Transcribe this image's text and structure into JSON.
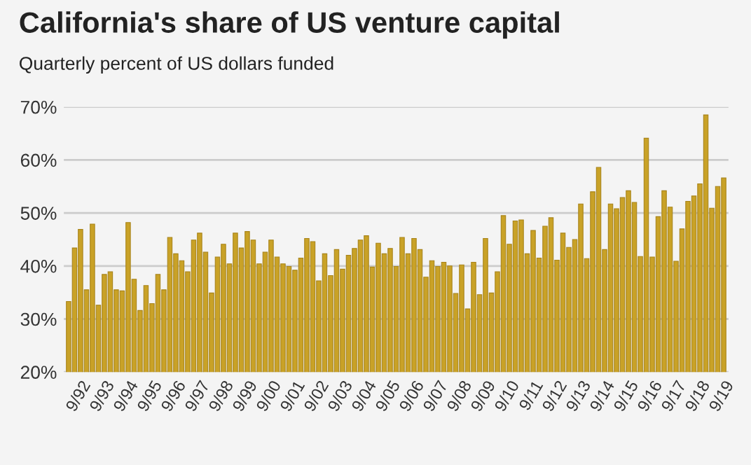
{
  "chart_data": {
    "type": "bar",
    "title": "California's share of US venture capital",
    "subtitle": "Quarterly percent of US dollars funded",
    "categories": [
      null,
      null,
      "9/92",
      null,
      null,
      null,
      "9/93",
      null,
      null,
      null,
      "9/94",
      null,
      null,
      null,
      "9/95",
      null,
      null,
      null,
      "9/96",
      null,
      null,
      null,
      "9/97",
      null,
      null,
      null,
      "9/98",
      null,
      null,
      null,
      "9/99",
      null,
      null,
      null,
      "9/00",
      null,
      null,
      null,
      "9/01",
      null,
      null,
      null,
      "9/02",
      null,
      null,
      null,
      "9/03",
      null,
      null,
      null,
      "9/04",
      null,
      null,
      null,
      "9/05",
      null,
      null,
      null,
      "9/06",
      null,
      null,
      null,
      "9/07",
      null,
      null,
      null,
      "9/08",
      null,
      null,
      null,
      "9/09",
      null,
      null,
      null,
      "9/10",
      null,
      null,
      null,
      "9/11",
      null,
      null,
      null,
      "9/12",
      null,
      null,
      null,
      "9/13",
      null,
      null,
      null,
      "9/14",
      null,
      null,
      null,
      "9/15",
      null,
      null,
      null,
      "9/16",
      null,
      null,
      null,
      "9/17",
      null,
      null,
      null,
      "9/18",
      null,
      null,
      null,
      "9/19"
    ],
    "values": [
      33.3,
      43.4,
      46.9,
      35.5,
      47.9,
      32.6,
      38.4,
      38.9,
      35.5,
      35.3,
      48.2,
      37.5,
      31.6,
      36.3,
      32.9,
      38.4,
      35.5,
      45.4,
      42.3,
      41,
      38.9,
      44.9,
      46.2,
      42.6,
      34.9,
      41.7,
      44.1,
      40.4,
      46.2,
      43.4,
      46.5,
      44.9,
      40.4,
      42.6,
      44.9,
      41.7,
      40.4,
      39.9,
      39.2,
      41.5,
      45.2,
      44.6,
      37.2,
      42.3,
      38.2,
      43.1,
      39.4,
      42,
      43.3,
      44.9,
      45.7,
      39.8,
      44.3,
      42.3,
      43.3,
      39.9,
      45.4,
      42.3,
      45.2,
      43.1,
      37.9,
      41,
      39.9,
      40.7,
      40,
      34.8,
      40.2,
      31.9,
      40.7,
      34.6,
      45.2,
      34.9,
      38.9,
      49.5,
      44.1,
      48.5,
      48.7,
      42.3,
      46.7,
      41.5,
      47.5,
      49.1,
      41.1,
      46.2,
      43.5,
      45,
      51.7,
      41.4,
      54,
      58.6,
      43.1,
      51.7,
      50.8,
      52.9,
      54.2,
      52,
      41.8,
      64.1,
      41.7,
      49.3,
      54.2,
      51.1,
      40.9,
      47,
      52.2,
      53.2,
      55.5,
      68.5,
      50.9,
      55,
      56.6
    ],
    "color": "#c9a227",
    "ylim": [
      20,
      70
    ],
    "yticks": [
      {
        "value": 20,
        "label": "20%"
      },
      {
        "value": 30,
        "label": "30%"
      },
      {
        "value": 40,
        "label": "40%"
      },
      {
        "value": 50,
        "label": "50%"
      },
      {
        "value": 60,
        "label": "60%"
      },
      {
        "value": 70,
        "label": "70%"
      }
    ],
    "grid": "y"
  }
}
